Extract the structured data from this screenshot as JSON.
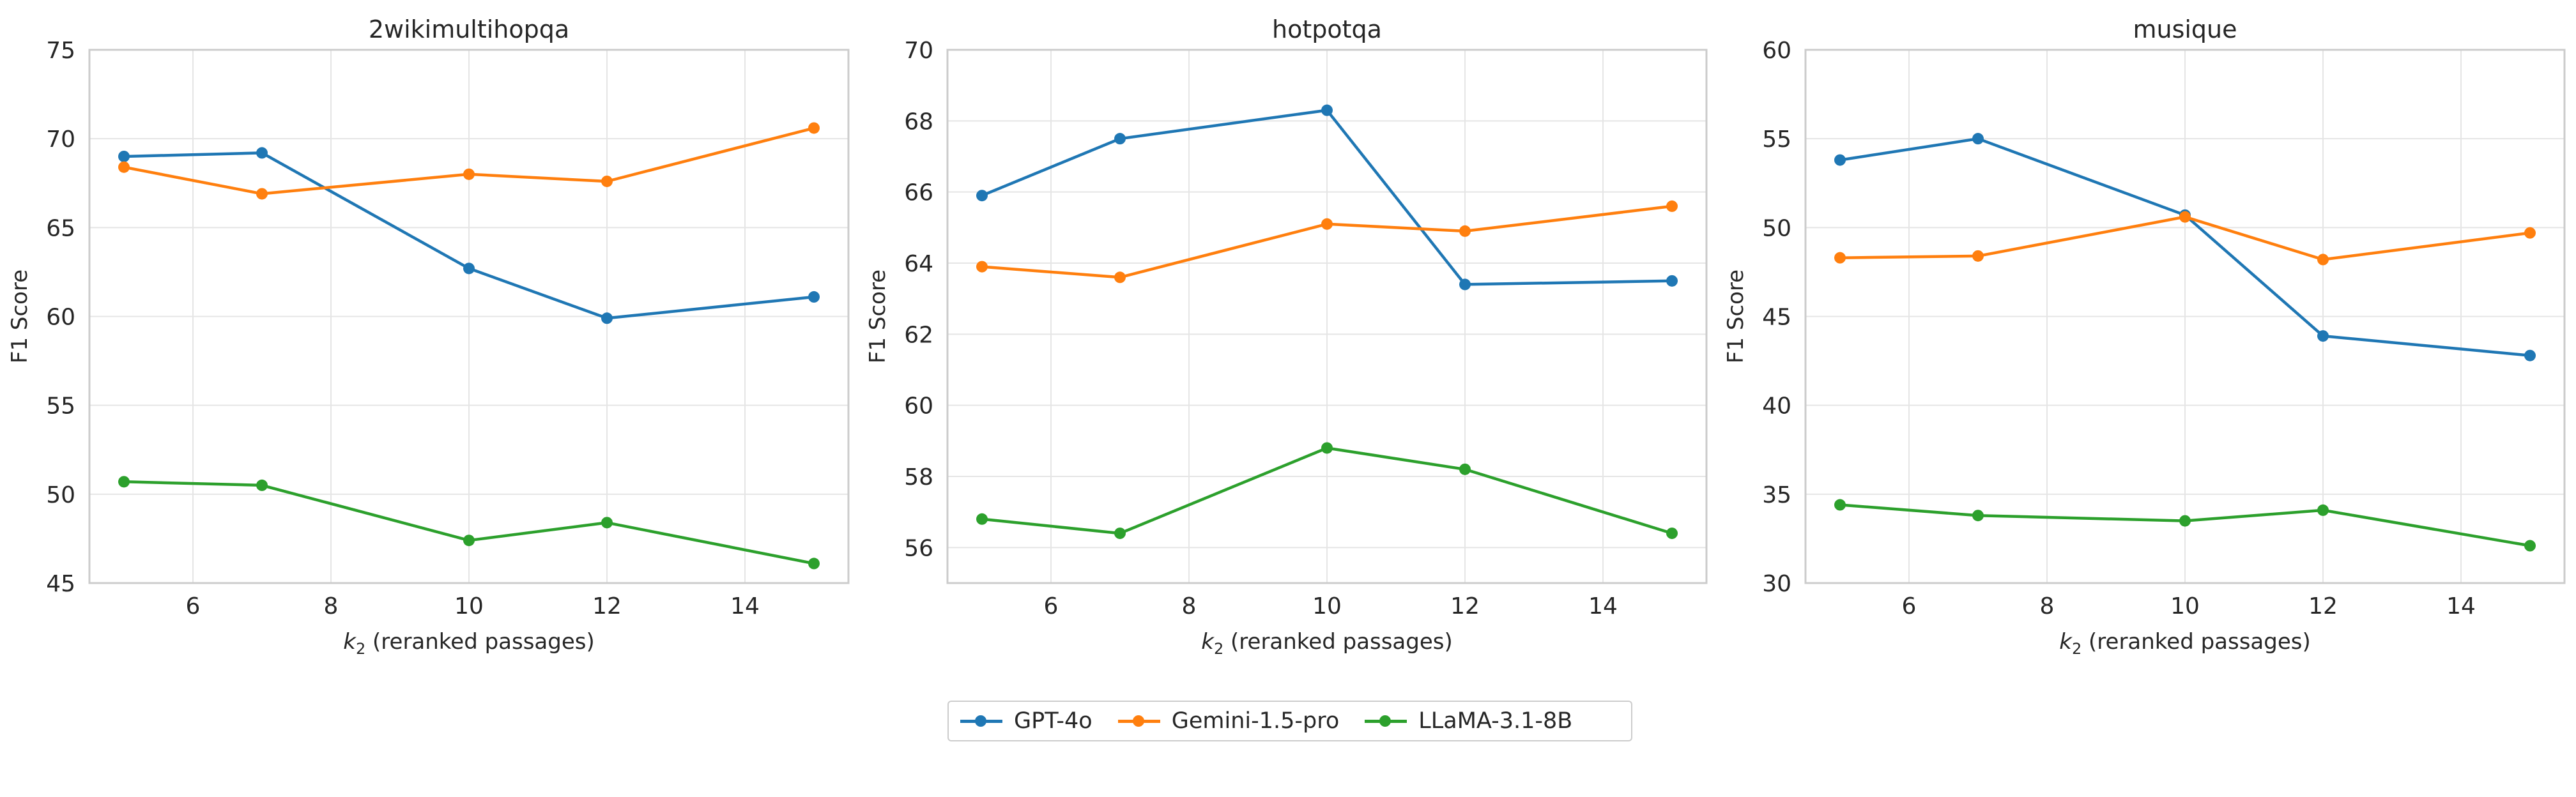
{
  "chart_data": [
    {
      "type": "line",
      "title": "2wikimultihopqa",
      "xlabel_var": "k",
      "xlabel_sub": "2",
      "xlabel_rest": " (reranked passages)",
      "ylabel": "F1 Score",
      "xlim": [
        4.5,
        15.5
      ],
      "ylim": [
        45,
        75
      ],
      "xticks": [
        6,
        8,
        10,
        12,
        14
      ],
      "yticks": [
        45,
        50,
        55,
        60,
        65,
        70,
        75
      ],
      "grid": true,
      "x": [
        5,
        7,
        10,
        12,
        15
      ],
      "series": [
        {
          "name": "GPT-4o",
          "color": "#1f77b4",
          "values": [
            69.0,
            69.2,
            62.7,
            59.9,
            61.1
          ]
        },
        {
          "name": "Gemini-1.5-pro",
          "color": "#ff7f0e",
          "values": [
            68.4,
            66.9,
            68.0,
            67.6,
            70.6
          ]
        },
        {
          "name": "LLaMA-3.1-8B",
          "color": "#2ca02c",
          "values": [
            50.7,
            50.5,
            47.4,
            48.4,
            46.1
          ]
        }
      ]
    },
    {
      "type": "line",
      "title": "hotpotqa",
      "xlabel_var": "k",
      "xlabel_sub": "2",
      "xlabel_rest": " (reranked passages)",
      "ylabel": "F1 Score",
      "xlim": [
        4.5,
        15.5
      ],
      "ylim": [
        55,
        70
      ],
      "xticks": [
        6,
        8,
        10,
        12,
        14
      ],
      "yticks": [
        56,
        58,
        60,
        62,
        64,
        66,
        68,
        70
      ],
      "grid": true,
      "x": [
        5,
        7,
        10,
        12,
        15
      ],
      "series": [
        {
          "name": "GPT-4o",
          "color": "#1f77b4",
          "values": [
            65.9,
            67.5,
            68.3,
            63.4,
            63.5
          ]
        },
        {
          "name": "Gemini-1.5-pro",
          "color": "#ff7f0e",
          "values": [
            63.9,
            63.6,
            65.1,
            64.9,
            65.6
          ]
        },
        {
          "name": "LLaMA-3.1-8B",
          "color": "#2ca02c",
          "values": [
            56.8,
            56.4,
            58.8,
            58.2,
            56.4
          ]
        }
      ]
    },
    {
      "type": "line",
      "title": "musique",
      "xlabel_var": "k",
      "xlabel_sub": "2",
      "xlabel_rest": " (reranked passages)",
      "ylabel": "F1 Score",
      "xlim": [
        4.5,
        15.5
      ],
      "ylim": [
        30,
        60
      ],
      "xticks": [
        6,
        8,
        10,
        12,
        14
      ],
      "yticks": [
        30,
        35,
        40,
        45,
        50,
        55,
        60
      ],
      "grid": true,
      "x": [
        5,
        7,
        10,
        12,
        15
      ],
      "series": [
        {
          "name": "GPT-4o",
          "color": "#1f77b4",
          "values": [
            53.8,
            55.0,
            50.7,
            43.9,
            42.8
          ]
        },
        {
          "name": "Gemini-1.5-pro",
          "color": "#ff7f0e",
          "values": [
            48.3,
            48.4,
            50.6,
            48.2,
            49.7
          ]
        },
        {
          "name": "LLaMA-3.1-8B",
          "color": "#2ca02c",
          "values": [
            34.4,
            33.8,
            33.5,
            34.1,
            32.1
          ]
        }
      ]
    }
  ],
  "legend": {
    "position": "bottom-center",
    "items": [
      {
        "label": "GPT-4o",
        "color": "#1f77b4"
      },
      {
        "label": "Gemini-1.5-pro",
        "color": "#ff7f0e"
      },
      {
        "label": "LLaMA-3.1-8B",
        "color": "#2ca02c"
      }
    ]
  }
}
